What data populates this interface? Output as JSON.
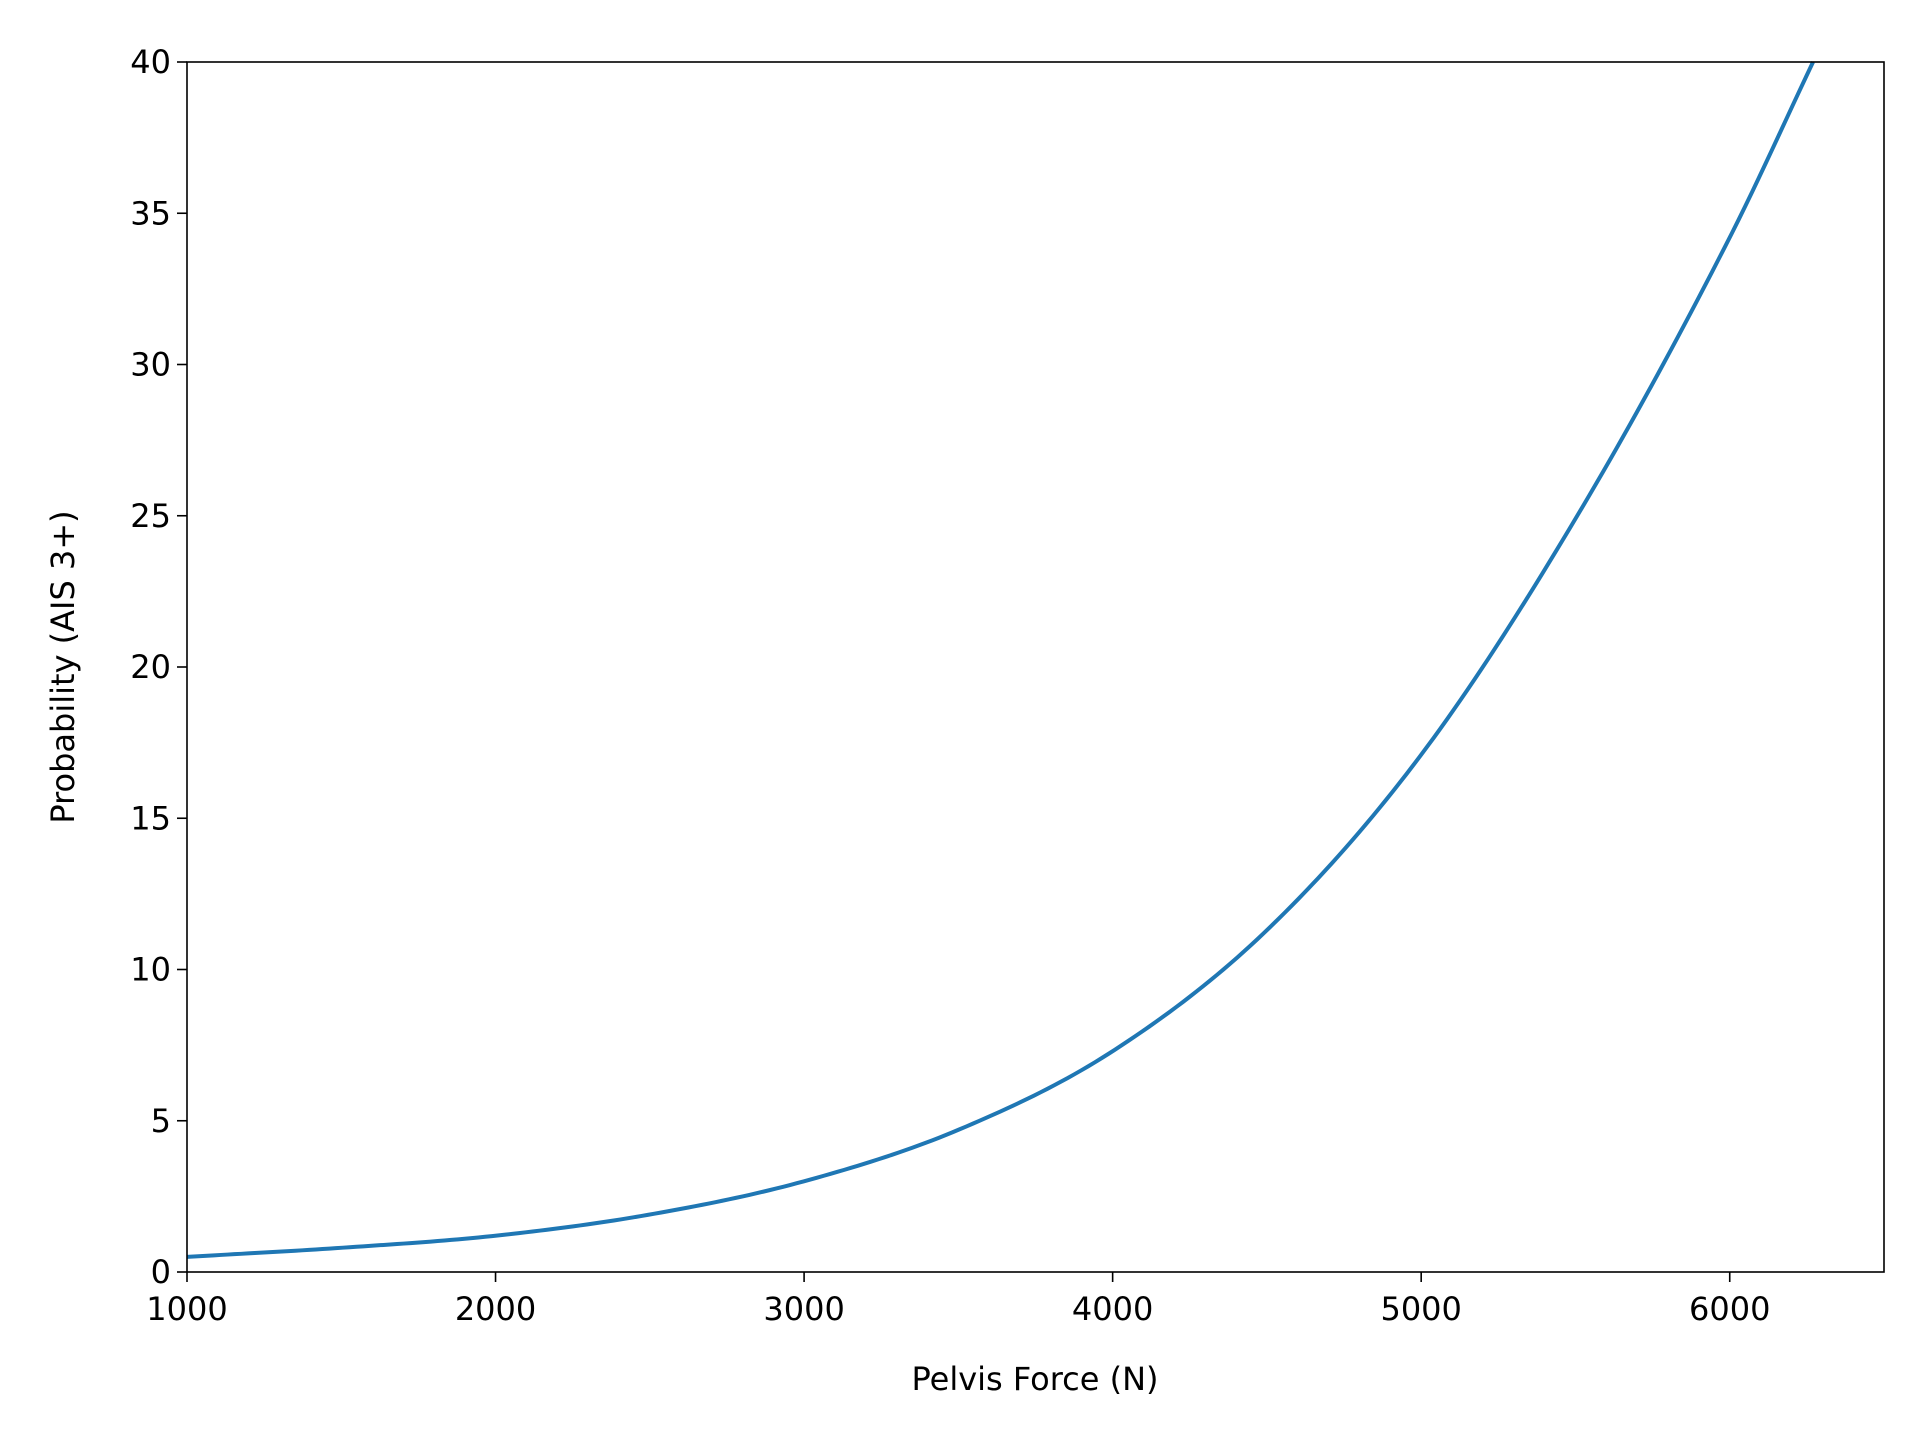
{
  "chart_data": {
    "type": "line",
    "title": "",
    "xlabel": "Pelvis Force (N)",
    "ylabel": "Probability (AIS 3+)",
    "xlim": [
      1000,
      6500
    ],
    "ylim": [
      0,
      40
    ],
    "xticks": [
      1000,
      2000,
      3000,
      4000,
      5000,
      6000
    ],
    "yticks": [
      0,
      5,
      10,
      15,
      20,
      25,
      30,
      35,
      40
    ],
    "grid": false,
    "legend": "none",
    "series": [
      {
        "color": "#1f77b4",
        "x": [
          1000,
          1500,
          2000,
          2500,
          3000,
          3500,
          4000,
          4500,
          5000,
          5500,
          6000,
          6270
        ],
        "y": [
          0.5,
          0.8,
          1.2,
          1.9,
          3.0,
          4.7,
          7.3,
          11.3,
          17.1,
          24.9,
          34.2,
          40.0
        ]
      }
    ]
  }
}
